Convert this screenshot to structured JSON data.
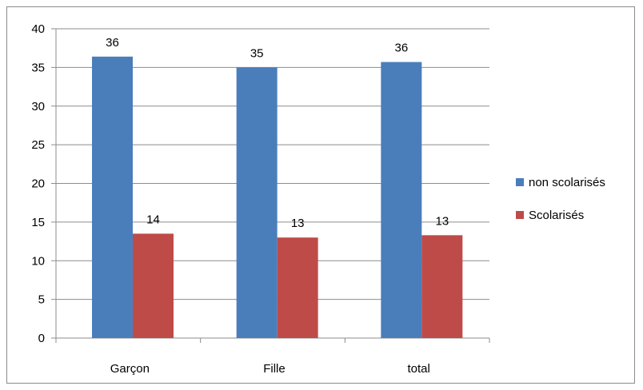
{
  "chart_data": {
    "type": "bar",
    "categories": [
      "Garçon",
      "Fille",
      "total"
    ],
    "series": [
      {
        "name": "non scolarisés",
        "values": [
          36.4,
          35.0,
          35.7
        ],
        "labels": [
          "36",
          "35",
          "36"
        ],
        "color": "#4a7ebb"
      },
      {
        "name": "Scolarisés",
        "values": [
          13.5,
          13.0,
          13.3
        ],
        "labels": [
          "14",
          "13",
          "13"
        ],
        "color": "#be4b48"
      }
    ],
    "ylim": [
      0,
      40
    ],
    "yticks": [
      "0",
      "5",
      "10",
      "15",
      "20",
      "25",
      "30",
      "35",
      "40"
    ],
    "grid": true,
    "legend": "right"
  }
}
